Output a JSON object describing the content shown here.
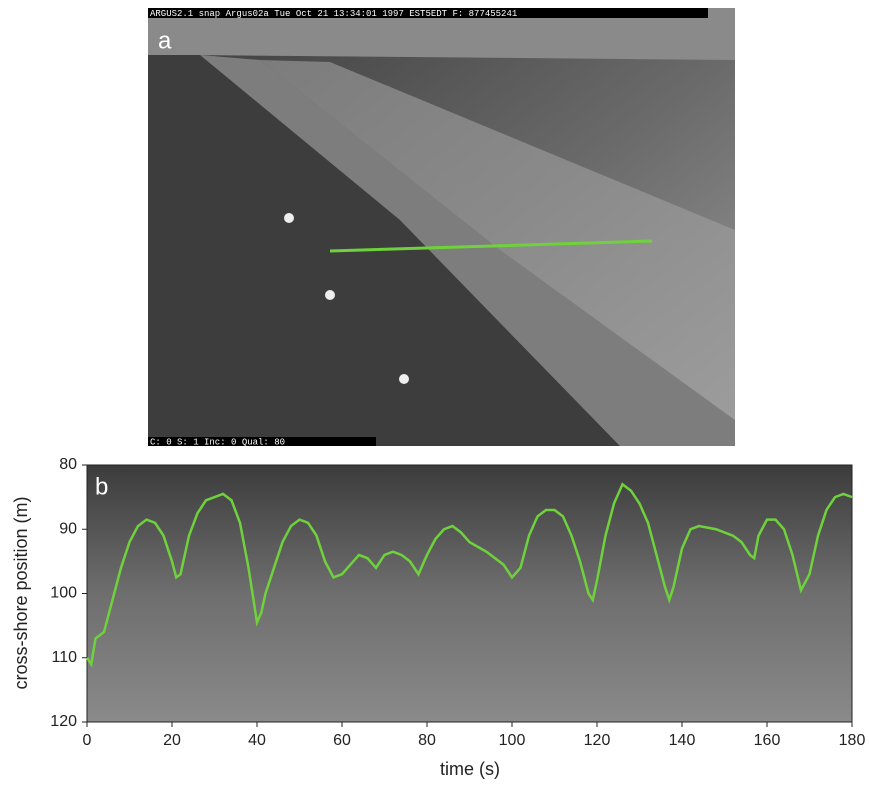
{
  "panel_a": {
    "label": "a",
    "header": "ARGUS2.1 snap   Argus02a   Tue Oct 21 13:34:01 1997 EST5EDT F: 877455241",
    "footer": "C: 0 S:   1 Inc:  0 Qual:  80"
  },
  "chart_data": {
    "type": "line",
    "panel_label": "b",
    "x_label": "time (s)",
    "y_label": "cross-shore position (m)",
    "x": [
      0,
      1,
      2,
      4,
      6,
      8,
      10,
      12,
      14,
      16,
      18,
      20,
      21,
      22,
      24,
      26,
      28,
      30,
      32,
      34,
      36,
      38,
      40,
      41,
      42,
      44,
      46,
      48,
      50,
      52,
      54,
      56,
      58,
      60,
      62,
      64,
      66,
      68,
      70,
      72,
      74,
      76,
      78,
      80,
      82,
      84,
      86,
      88,
      90,
      94,
      98,
      100,
      102,
      104,
      106,
      108,
      110,
      112,
      114,
      116,
      118,
      119,
      120,
      122,
      124,
      126,
      128,
      130,
      132,
      134,
      136,
      137,
      138,
      140,
      142,
      144,
      148,
      152,
      154,
      156,
      157,
      158,
      160,
      162,
      164,
      166,
      168,
      170,
      172,
      174,
      176,
      178,
      180
    ],
    "series": [
      {
        "color": "#6fd23c",
        "values": [
          110,
          111,
          107,
          106,
          101,
          96,
          92,
          89.5,
          88.5,
          89,
          91,
          95,
          97.5,
          97,
          91,
          87.5,
          85.5,
          85,
          84.5,
          85.5,
          89,
          96,
          104.5,
          103,
          100,
          96,
          92,
          89.5,
          88.5,
          89,
          91,
          95,
          97.5,
          97,
          95.5,
          94,
          94.5,
          96,
          94,
          93.5,
          94,
          95,
          97,
          94,
          91.5,
          90,
          89.5,
          90.5,
          92,
          93.5,
          95.5,
          97.5,
          96,
          91,
          88,
          87,
          87,
          88,
          91,
          95,
          100,
          101,
          98,
          91,
          86,
          83,
          84,
          86,
          89,
          94,
          99,
          101,
          99,
          93,
          90,
          89.5,
          90,
          91,
          92,
          94,
          94.5,
          91,
          88.5,
          88.5,
          90,
          94,
          99.5,
          97,
          91,
          87,
          85,
          84.5,
          85
        ]
      }
    ],
    "xlim": [
      0,
      180
    ],
    "xticks": [
      0,
      20,
      40,
      60,
      80,
      100,
      120,
      140,
      160,
      180
    ],
    "ylim": [
      120,
      80
    ],
    "yticks": [
      80,
      90,
      100,
      110,
      120
    ]
  }
}
